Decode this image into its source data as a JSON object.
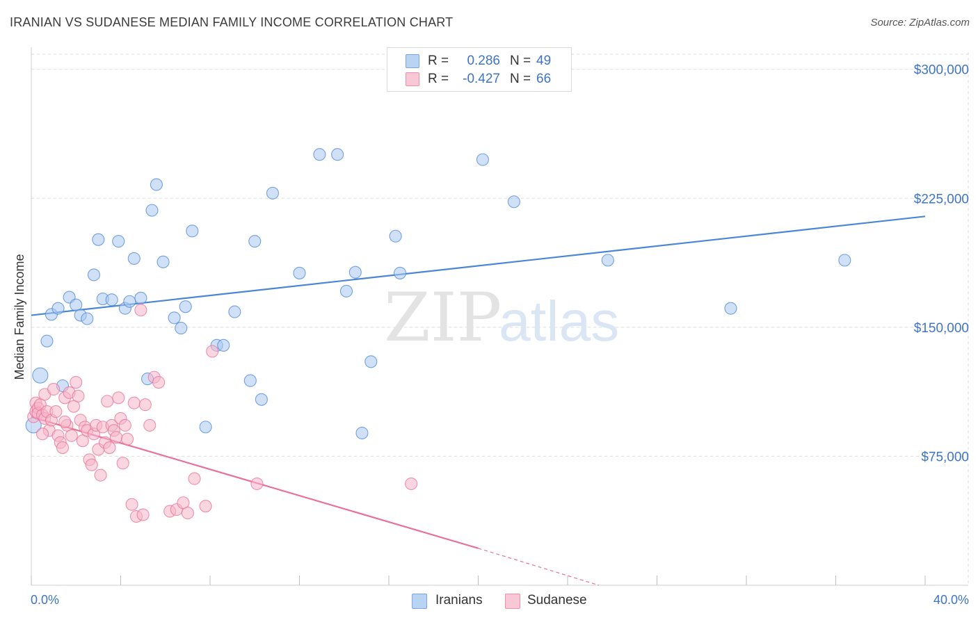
{
  "title": "IRANIAN VS SUDANESE MEDIAN FAMILY INCOME CORRELATION CHART",
  "source": "Source: ZipAtlas.com",
  "watermark": {
    "zip": "ZIP",
    "atlas": "atlas"
  },
  "legend": {
    "rows": [
      {
        "r_label": "R =",
        "r_value": "0.286",
        "n_label": "N =",
        "n_value": "49",
        "color": "#a9c8f0"
      },
      {
        "r_label": "R =",
        "r_value": "-0.427",
        "n_label": "N =",
        "n_value": "66",
        "color": "#f6b5c8"
      }
    ]
  },
  "bottom_legend": [
    {
      "label": "Iranians",
      "color": "#a9c8f0"
    },
    {
      "label": "Sudanese",
      "color": "#f6b5c8"
    }
  ],
  "chart_data": {
    "type": "scatter",
    "title": "IRANIAN VS SUDANESE MEDIAN FAMILY INCOME CORRELATION CHART",
    "xlabel": "",
    "ylabel": "Median Family Income",
    "xlim": [
      0,
      40
    ],
    "ylim": [
      0,
      310000
    ],
    "x_tick_labels": [
      "0.0%",
      "40.0%"
    ],
    "y_ticks": [
      75000,
      150000,
      225000,
      300000
    ],
    "y_tick_labels": [
      "$75,000",
      "$150,000",
      "$225,000",
      "$300,000"
    ],
    "grid": true,
    "series": [
      {
        "name": "Iranians",
        "color": "#4a86d8",
        "fill": "#a9c8f0",
        "trend": {
          "x": [
            0,
            40
          ],
          "y": [
            157000,
            214500
          ],
          "style": "solid"
        },
        "points": [
          [
            0.1,
            93000
          ],
          [
            0.4,
            122000
          ],
          [
            0.7,
            142000
          ],
          [
            0.9,
            157500
          ],
          [
            1.2,
            161000
          ],
          [
            1.4,
            116000
          ],
          [
            1.7,
            167500
          ],
          [
            2.0,
            163000
          ],
          [
            2.2,
            157000
          ],
          [
            2.5,
            155000
          ],
          [
            2.8,
            180500
          ],
          [
            3.0,
            201000
          ],
          [
            3.2,
            166500
          ],
          [
            3.6,
            166000
          ],
          [
            3.9,
            200000
          ],
          [
            4.2,
            161000
          ],
          [
            4.4,
            165000
          ],
          [
            4.6,
            190000
          ],
          [
            4.9,
            167000
          ],
          [
            5.2,
            120000
          ],
          [
            5.4,
            218000
          ],
          [
            5.6,
            233000
          ],
          [
            5.9,
            188000
          ],
          [
            6.4,
            155500
          ],
          [
            6.7,
            149500
          ],
          [
            6.9,
            162000
          ],
          [
            7.2,
            206000
          ],
          [
            7.8,
            92000
          ],
          [
            8.3,
            139500
          ],
          [
            8.6,
            139500
          ],
          [
            9.1,
            159000
          ],
          [
            9.8,
            119000
          ],
          [
            10.0,
            200000
          ],
          [
            10.3,
            108000
          ],
          [
            10.8,
            228000
          ],
          [
            12.0,
            181500
          ],
          [
            12.9,
            250500
          ],
          [
            13.7,
            250500
          ],
          [
            14.1,
            171000
          ],
          [
            14.5,
            182000
          ],
          [
            14.8,
            88500
          ],
          [
            15.2,
            130000
          ],
          [
            16.3,
            203000
          ],
          [
            16.5,
            181500
          ],
          [
            20.2,
            247500
          ],
          [
            21.6,
            223000
          ],
          [
            25.8,
            189000
          ],
          [
            31.3,
            161000
          ],
          [
            36.4,
            189000
          ]
        ]
      },
      {
        "name": "Sudanese",
        "color": "#e8709a",
        "fill": "#f6b5c8",
        "trend": {
          "x": [
            0,
            20
          ],
          "y": [
            98000,
            21500
          ],
          "style": "solid",
          "extend_to_x": 25.4,
          "extend_to_y": 0,
          "extend_style": "dashed"
        },
        "points": [
          [
            0.1,
            98000
          ],
          [
            0.2,
            106000
          ],
          [
            0.2,
            101000
          ],
          [
            0.3,
            103000
          ],
          [
            0.3,
            100000
          ],
          [
            0.4,
            105000
          ],
          [
            0.5,
            99000
          ],
          [
            0.6,
            97000
          ],
          [
            0.6,
            111000
          ],
          [
            0.7,
            101000
          ],
          [
            0.8,
            90000
          ],
          [
            0.9,
            96000
          ],
          [
            1.0,
            114000
          ],
          [
            1.1,
            101000
          ],
          [
            1.2,
            87000
          ],
          [
            1.3,
            83000
          ],
          [
            1.4,
            80000
          ],
          [
            1.5,
            109000
          ],
          [
            1.6,
            93000
          ],
          [
            1.7,
            112000
          ],
          [
            1.8,
            87000
          ],
          [
            1.9,
            104000
          ],
          [
            2.0,
            118000
          ],
          [
            2.1,
            110000
          ],
          [
            2.2,
            96000
          ],
          [
            2.3,
            84000
          ],
          [
            2.4,
            92000
          ],
          [
            2.5,
            90000
          ],
          [
            2.6,
            73000
          ],
          [
            2.7,
            70000
          ],
          [
            2.8,
            88000
          ],
          [
            2.9,
            93000
          ],
          [
            3.0,
            79000
          ],
          [
            3.1,
            64000
          ],
          [
            3.2,
            92000
          ],
          [
            3.3,
            83000
          ],
          [
            3.4,
            107000
          ],
          [
            3.5,
            80000
          ],
          [
            3.6,
            93000
          ],
          [
            3.7,
            90000
          ],
          [
            3.8,
            86000
          ],
          [
            3.9,
            109000
          ],
          [
            4.0,
            97000
          ],
          [
            4.1,
            71000
          ],
          [
            4.2,
            93000
          ],
          [
            4.3,
            85000
          ],
          [
            4.5,
            47000
          ],
          [
            4.6,
            106000
          ],
          [
            4.7,
            40000
          ],
          [
            4.9,
            160000
          ],
          [
            5.0,
            41000
          ],
          [
            5.1,
            105000
          ],
          [
            5.3,
            93000
          ],
          [
            5.5,
            121000
          ],
          [
            5.7,
            118000
          ],
          [
            6.2,
            43000
          ],
          [
            6.5,
            44000
          ],
          [
            6.8,
            48000
          ],
          [
            7.0,
            42000
          ],
          [
            7.3,
            62000
          ],
          [
            7.8,
            46000
          ],
          [
            8.1,
            136000
          ],
          [
            10.1,
            59000
          ],
          [
            17.0,
            59000
          ],
          [
            0.5,
            88000
          ],
          [
            1.5,
            95000
          ]
        ]
      }
    ]
  }
}
